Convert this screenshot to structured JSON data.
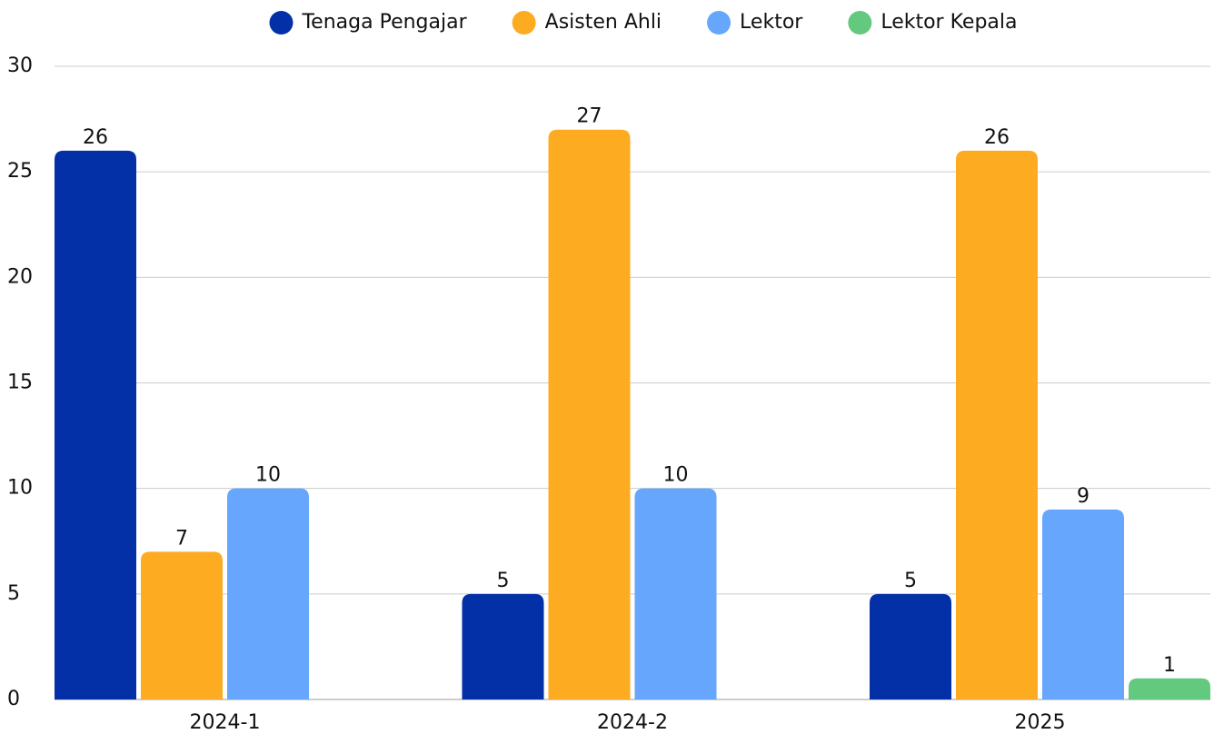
{
  "chart_data": {
    "type": "bar",
    "categories": [
      "2024-1",
      "2024-2",
      "2025"
    ],
    "series": [
      {
        "name": "Tenaga Pengajar",
        "color": "#0330a6",
        "values": [
          26,
          5,
          5
        ]
      },
      {
        "name": "Asisten Ahli",
        "color": "#fdab20",
        "values": [
          7,
          27,
          26
        ]
      },
      {
        "name": "Lektor",
        "color": "#66a6fc",
        "values": [
          10,
          10,
          9
        ]
      },
      {
        "name": "Lektor Kepala",
        "color": "#62c97e",
        "values": [
          null,
          null,
          1
        ]
      }
    ],
    "ylim": [
      0,
      30
    ],
    "yticks": [
      0,
      5,
      10,
      15,
      20,
      25,
      30
    ],
    "grid": true,
    "legend": "top"
  }
}
